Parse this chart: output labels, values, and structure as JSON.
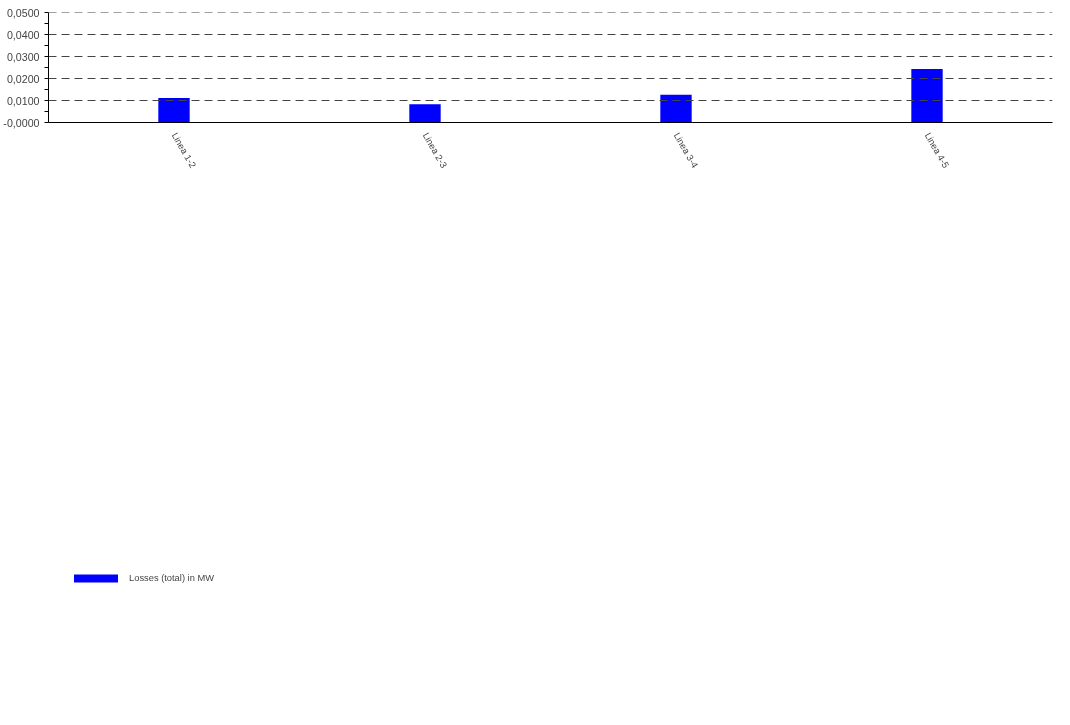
{
  "chart_data": {
    "type": "bar",
    "categories": [
      "Linea 1-2",
      "Linea 2-3",
      "Linea 3-4",
      "Linea 4-5"
    ],
    "series": [
      {
        "name": "Losses (total) in MW",
        "color": "#0000ff",
        "values": [
          0.0111,
          0.0083,
          0.0126,
          0.0243
        ]
      }
    ],
    "ylim": [
      0,
      0.05
    ],
    "yticks": [
      {
        "value": 0,
        "label": "-0,0000"
      },
      {
        "value": 0.005,
        "label": null
      },
      {
        "value": 0.01,
        "label": "0,0100"
      },
      {
        "value": 0.015,
        "label": null
      },
      {
        "value": 0.02,
        "label": "0,0200"
      },
      {
        "value": 0.025,
        "label": null
      },
      {
        "value": 0.03,
        "label": "0,0300"
      },
      {
        "value": 0.035,
        "label": null
      },
      {
        "value": 0.04,
        "label": "0,0400"
      },
      {
        "value": 0.045,
        "label": null
      },
      {
        "value": 0.05,
        "label": "0,0500"
      }
    ],
    "grid": "y",
    "line_style": "dashed",
    "legend": "bottom left"
  }
}
